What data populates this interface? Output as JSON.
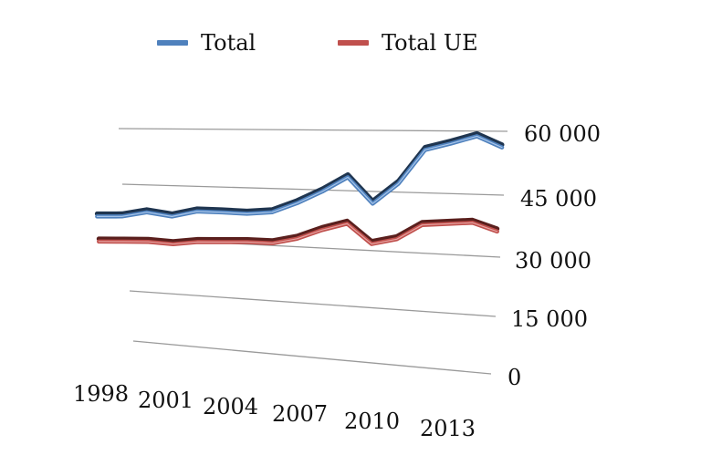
{
  "chart_data": {
    "type": "line",
    "title": "",
    "xlabel": "",
    "ylabel": "",
    "x": [
      1998,
      1999,
      2000,
      2001,
      2002,
      2003,
      2004,
      2005,
      2006,
      2007,
      2008,
      2009,
      2010,
      2011,
      2012,
      2013,
      2014
    ],
    "x_tick_labels": [
      "1998",
      "2001",
      "2004",
      "2007",
      "2010",
      "2013"
    ],
    "y_tick_labels": [
      "0",
      "15 000",
      "30 000",
      "45 000",
      "60 000"
    ],
    "ylim": [
      0,
      60000
    ],
    "grid": true,
    "legend_position": "top",
    "series": [
      {
        "name": "Total",
        "color": "#4f81bd",
        "values": [
          36000,
          36300,
          37700,
          36800,
          38400,
          38400,
          38300,
          38900,
          41500,
          44700,
          48400,
          42000,
          47100,
          55400,
          57000,
          58800,
          56200
        ]
      },
      {
        "name": "Total UE",
        "color": "#c0504d",
        "values": [
          29000,
          29300,
          29600,
          29300,
          30200,
          30500,
          30800,
          30800,
          32300,
          34800,
          36700,
          31800,
          33300,
          37100,
          37600,
          38100,
          36200
        ]
      }
    ]
  }
}
